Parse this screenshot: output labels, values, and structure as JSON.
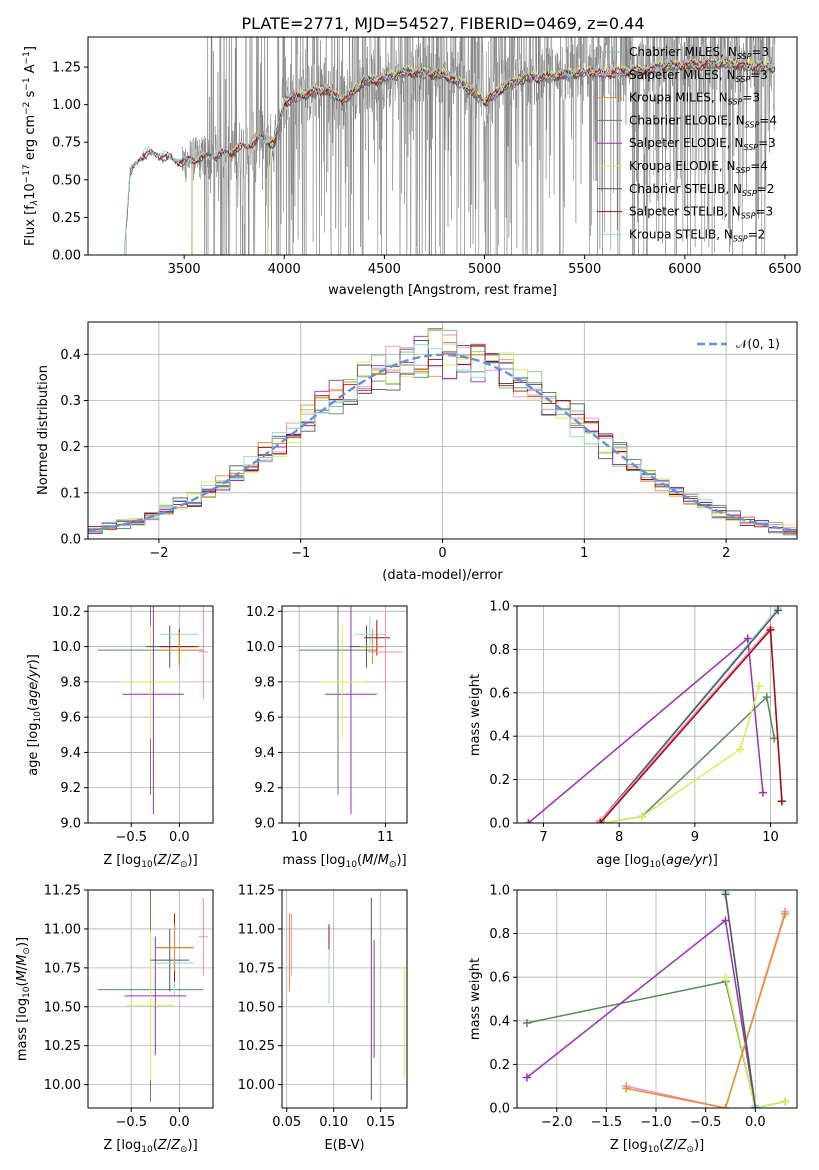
{
  "figure": {
    "title": "PLATE=2771, MJD=54527, FIBERID=0469, z=0.44"
  },
  "colors": {
    "Chabrier MILES": "#7fbf7f",
    "Salpeter MILES": "#f08cc8",
    "Kroupa MILES": "#e8902a",
    "Chabrier ELODIE": "#5a8a5a",
    "Salpeter ELODIE": "#9a32b4",
    "Kroupa ELODIE": "#d6ee5a",
    "Chabrier STELIB": "#555555",
    "Salpeter STELIB": "#a01010",
    "Kroupa STELIB": "#8cd8e8",
    "data_gray": "#808080",
    "normal_curve": "#6a8fd6",
    "grid": "#b0b0b0"
  },
  "legend_entries": [
    {
      "model": "Chabrier MILES",
      "label": "Chabrier MILES, N",
      "nssp": "=3"
    },
    {
      "model": "Salpeter MILES",
      "label": "Salpeter MILES, N",
      "nssp": "=3"
    },
    {
      "model": "Kroupa MILES",
      "label": "Kroupa MILES, N",
      "nssp": "=3"
    },
    {
      "model": "Chabrier ELODIE",
      "label": "Chabrier ELODIE, N",
      "nssp": "=4"
    },
    {
      "model": "Salpeter ELODIE",
      "label": "Salpeter ELODIE, N",
      "nssp": "=3"
    },
    {
      "model": "Kroupa ELODIE",
      "label": "Kroupa ELODIE, N",
      "nssp": "=4"
    },
    {
      "model": "Chabrier STELIB",
      "label": "Chabrier STELIB, N",
      "nssp": "=2"
    },
    {
      "model": "Salpeter STELIB",
      "label": "Salpeter STELIB, N",
      "nssp": "=3"
    },
    {
      "model": "Kroupa STELIB",
      "label": "Kroupa STELIB, N",
      "nssp": "=2"
    }
  ],
  "legend_ssp_subscript": "SSP",
  "chart_data": [
    {
      "id": "spectrum",
      "type": "line",
      "xlabel": "wavelength [Angstrom, rest frame]",
      "ylabel": "Flux [f",
      "ylabel_parts": [
        "Flux [f",
        "λ",
        "10",
        "−17",
        " erg cm",
        "−2",
        " s",
        "−1",
        " A",
        "−1",
        "]"
      ],
      "xlim": [
        3020,
        6560
      ],
      "ylim": [
        0,
        1.45
      ],
      "xticks": [
        3500,
        4000,
        4500,
        5000,
        5500,
        6000,
        6500
      ],
      "xtick_labels": [
        "3500",
        "4000",
        "4500",
        "5000",
        "5500",
        "6000",
        "6500"
      ],
      "yticks": [
        0,
        0.25,
        0.5,
        0.75,
        1.0,
        1.25
      ],
      "ytick_labels": [
        "0.00",
        "0.25",
        "0.50",
        "0.75",
        "1.00",
        "1.25"
      ],
      "grid": false,
      "legend_position": "top-right",
      "model_continuum": {
        "x": [
          3200,
          3230,
          3300,
          3400,
          3480,
          3560,
          3640,
          3720,
          3800,
          3880,
          3950,
          4000,
          4100,
          4200,
          4300,
          4400,
          4500,
          4600,
          4700,
          4800,
          4900,
          5000,
          5100,
          5200,
          5300,
          5400,
          5500,
          5600,
          5700,
          5800,
          5900,
          6000,
          6100,
          6200,
          6300,
          6400,
          6500
        ],
        "y": [
          0.0,
          0.55,
          0.68,
          0.66,
          0.62,
          0.64,
          0.66,
          0.68,
          0.72,
          0.78,
          0.74,
          1.02,
          1.07,
          1.1,
          1.03,
          1.16,
          1.17,
          1.22,
          1.21,
          1.2,
          1.13,
          1.02,
          1.12,
          1.18,
          1.18,
          1.2,
          1.22,
          1.21,
          1.22,
          1.23,
          1.26,
          1.26,
          1.27,
          1.28,
          1.26,
          1.25,
          1.25
        ]
      },
      "model_start_wavelength": {
        "Chabrier MILES": 3540,
        "Salpeter MILES": 3540,
        "Kroupa MILES": 3540,
        "Chabrier ELODIE": 3920,
        "Salpeter ELODIE": 3920,
        "Kroupa ELODIE": 3920,
        "Chabrier STELIB": 3210,
        "Salpeter STELIB": 3210,
        "Kroupa STELIB": 3210
      },
      "data_range": [
        3200,
        6450
      ]
    },
    {
      "id": "residuals",
      "type": "histogram",
      "xlabel": "(data-model)/error",
      "ylabel": "Normed distribution",
      "xlim": [
        -2.5,
        2.5
      ],
      "ylim": [
        0,
        0.47
      ],
      "xticks": [
        -2,
        -1,
        0,
        1,
        2
      ],
      "xtick_labels": [
        "−2",
        "−1",
        "0",
        "1",
        "2"
      ],
      "yticks": [
        0,
        0.1,
        0.2,
        0.3,
        0.4
      ],
      "ytick_labels": [
        "0.0",
        "0.1",
        "0.2",
        "0.3",
        "0.4"
      ],
      "grid": true,
      "legend_position": "top-right",
      "normal_label": "𝒩(0, 1)",
      "bin_width": 0.1
    },
    {
      "id": "age_vs_Z",
      "type": "scatter",
      "xlabel": "Z [log",
      "ylabel": "age  [log",
      "xlim": [
        -0.95,
        0.35
      ],
      "ylim": [
        9.0,
        10.23
      ],
      "xticks": [
        -0.5,
        0.0
      ],
      "xtick_labels": [
        "−0.5",
        "0.0"
      ],
      "yticks": [
        9.0,
        9.2,
        9.4,
        9.6,
        9.8,
        10.0,
        10.2
      ],
      "ytick_labels": [
        "9.0",
        "9.2",
        "9.4",
        "9.6",
        "9.8",
        "10.0",
        "10.2"
      ],
      "grid": true,
      "points": [
        {
          "model": "Chabrier ELODIE",
          "x": -0.3,
          "y": 9.98,
          "xerr": 0.55,
          "yerr": 0.82
        },
        {
          "model": "Salpeter ELODIE",
          "x": -0.27,
          "y": 9.73,
          "xerr": 0.32,
          "yerr": 0.68
        },
        {
          "model": "Kroupa ELODIE",
          "x": -0.3,
          "y": 9.8,
          "xerr": 0.3,
          "yerr": 0.32
        },
        {
          "model": "Chabrier STELIB",
          "x": -0.1,
          "y": 10.0,
          "xerr": 0.25,
          "yerr": 0.12
        },
        {
          "model": "Kroupa STELIB",
          "x": 0.0,
          "y": 10.07,
          "xerr": 0.2,
          "yerr": 0.1
        },
        {
          "model": "Salpeter STELIB",
          "x": 0.0,
          "y": 10.0,
          "xerr": 0.2,
          "yerr": 0.1
        },
        {
          "model": "Kroupa MILES",
          "x": 0.0,
          "y": 9.98,
          "xerr": 0.2,
          "yerr": 0.1
        },
        {
          "model": "Salpeter MILES",
          "x": 0.25,
          "y": 9.97,
          "xerr": 0.05,
          "yerr": 0.27
        }
      ]
    },
    {
      "id": "age_vs_mass",
      "type": "scatter",
      "xlabel": "mass [log",
      "ylabel": "",
      "xlim": [
        9.8,
        11.25
      ],
      "ylim": [
        9.0,
        10.23
      ],
      "xticks": [
        10,
        11
      ],
      "xtick_labels": [
        "10",
        "11"
      ],
      "yticks": [
        9.0,
        9.2,
        9.4,
        9.6,
        9.8,
        10.0,
        10.2
      ],
      "ytick_labels": [
        "9.0",
        "9.2",
        "9.4",
        "9.6",
        "9.8",
        "10.0",
        "10.2"
      ],
      "grid": true,
      "points": [
        {
          "model": "Chabrier ELODIE",
          "x": 10.45,
          "y": 9.98,
          "xerr": 0.45,
          "yerr": 0.82
        },
        {
          "model": "Salpeter ELODIE",
          "x": 10.6,
          "y": 9.73,
          "xerr": 0.3,
          "yerr": 0.68
        },
        {
          "model": "Kroupa ELODIE",
          "x": 10.5,
          "y": 9.8,
          "xerr": 0.25,
          "yerr": 0.32
        },
        {
          "model": "Chabrier STELIB",
          "x": 10.78,
          "y": 10.0,
          "xerr": 0.2,
          "yerr": 0.12
        },
        {
          "model": "Kroupa STELIB",
          "x": 10.82,
          "y": 10.07,
          "xerr": 0.18,
          "yerr": 0.1
        },
        {
          "model": "Salpeter STELIB",
          "x": 10.9,
          "y": 10.05,
          "xerr": 0.15,
          "yerr": 0.1
        },
        {
          "model": "Salpeter MILES",
          "x": 11.0,
          "y": 9.97,
          "xerr": 0.2,
          "yerr": 0.22
        },
        {
          "model": "Kroupa MILES",
          "x": 10.85,
          "y": 10.0,
          "xerr": 0.15,
          "yerr": 0.1
        }
      ]
    },
    {
      "id": "weight_vs_age",
      "type": "line",
      "xlabel": "age  [log",
      "ylabel": "mass weight",
      "xlim": [
        6.65,
        10.35
      ],
      "ylim": [
        0,
        1.0
      ],
      "xticks": [
        7,
        8,
        9,
        10
      ],
      "xtick_labels": [
        "7",
        "8",
        "9",
        "10"
      ],
      "yticks": [
        0,
        0.2,
        0.4,
        0.6,
        0.8,
        1.0
      ],
      "ytick_labels": [
        "0.0",
        "0.2",
        "0.4",
        "0.6",
        "0.8",
        "1.0"
      ],
      "grid": true,
      "series": [
        {
          "model": "Salpeter ELODIE",
          "x": [
            6.8,
            9.7,
            9.9
          ],
          "y": [
            0.0,
            0.85,
            0.14
          ]
        },
        {
          "model": "Chabrier ELODIE",
          "x": [
            7.8,
            8.3,
            9.95,
            10.05
          ],
          "y": [
            0.0,
            0.03,
            0.58,
            0.39
          ]
        },
        {
          "model": "Kroupa ELODIE",
          "x": [
            7.8,
            8.3,
            9.6,
            9.85
          ],
          "y": [
            0.0,
            0.03,
            0.34,
            0.63
          ]
        },
        {
          "model": "Kroupa STELIB",
          "x": [
            7.75,
            10.1
          ],
          "y": [
            0.01,
            0.99
          ]
        },
        {
          "model": "Chabrier STELIB",
          "x": [
            7.75,
            10.1
          ],
          "y": [
            0.01,
            0.98
          ]
        },
        {
          "model": "Kroupa MILES",
          "x": [
            7.75,
            10.0,
            10.15
          ],
          "y": [
            0.0,
            0.89,
            0.1
          ]
        },
        {
          "model": "Salpeter MILES",
          "x": [
            7.75,
            10.0,
            10.15
          ],
          "y": [
            0.01,
            0.9,
            0.1
          ]
        },
        {
          "model": "Salpeter STELIB",
          "x": [
            7.75,
            10.0,
            10.15
          ],
          "y": [
            0.0,
            0.89,
            0.1
          ]
        }
      ]
    },
    {
      "id": "mass_vs_Z",
      "type": "scatter",
      "xlabel": "Z [log",
      "ylabel": "mass [log",
      "xlim": [
        -0.95,
        0.35
      ],
      "ylim": [
        9.85,
        11.25
      ],
      "xticks": [
        -0.5,
        0.0
      ],
      "xtick_labels": [
        "−0.5",
        "0.0"
      ],
      "yticks": [
        10.0,
        10.25,
        10.5,
        10.75,
        11.0,
        11.25
      ],
      "ytick_labels": [
        "10.00",
        "10.25",
        "10.50",
        "10.75",
        "11.00",
        "11.25"
      ],
      "grid": true,
      "points": [
        {
          "model": "Chabrier ELODIE",
          "x": -0.3,
          "y": 10.61,
          "xerr": 0.55,
          "yerr": 0.72
        },
        {
          "model": "Salpeter ELODIE",
          "x": -0.25,
          "y": 10.57,
          "xerr": 0.32,
          "yerr": 0.38
        },
        {
          "model": "Kroupa ELODIE",
          "x": -0.3,
          "y": 10.51,
          "xerr": 0.25,
          "yerr": 0.48
        },
        {
          "model": "Chabrier STELIB",
          "x": -0.1,
          "y": 10.8,
          "xerr": 0.2,
          "yerr": 0.2
        },
        {
          "model": "Kroupa STELIB",
          "x": -0.05,
          "y": 10.78,
          "xerr": 0.2,
          "yerr": 0.2
        },
        {
          "model": "Salpeter STELIB",
          "x": -0.05,
          "y": 10.88,
          "xerr": 0.2,
          "yerr": 0.22
        },
        {
          "model": "Kroupa MILES",
          "x": -0.05,
          "y": 10.88,
          "xerr": 0.2,
          "yerr": 0.15
        },
        {
          "model": "Salpeter MILES",
          "x": 0.25,
          "y": 10.95,
          "xerr": 0.05,
          "yerr": 0.25
        }
      ]
    },
    {
      "id": "mass_vs_EBV",
      "type": "scatter",
      "xlabel": "E(B-V)",
      "ylabel": "",
      "xlim": [
        0.045,
        0.178
      ],
      "ylim": [
        9.85,
        11.25
      ],
      "xticks": [
        0.05,
        0.1,
        0.15
      ],
      "xtick_labels": [
        "0.05",
        "0.10",
        "0.15"
      ],
      "yticks": [
        10.0,
        10.25,
        10.5,
        10.75,
        11.0,
        11.25
      ],
      "ytick_labels": [
        "10.00",
        "10.25",
        "10.50",
        "10.75",
        "11.00",
        "11.25"
      ],
      "grid": true,
      "points": [
        {
          "model": "Salpeter MILES",
          "x": 0.055,
          "y": 10.9,
          "xerr": 0.0,
          "yerr": 0.2
        },
        {
          "model": "Kroupa MILES",
          "x": 0.053,
          "y": 10.85,
          "xerr": 0.0,
          "yerr": 0.25
        },
        {
          "model": "Chabrier ELODIE",
          "x": 0.095,
          "y": 10.8,
          "xerr": 0.0,
          "yerr": 0.2
        },
        {
          "model": "Kroupa STELIB",
          "x": 0.095,
          "y": 10.77,
          "xerr": 0.0,
          "yerr": 0.25
        },
        {
          "model": "Salpeter STELIB",
          "x": 0.095,
          "y": 10.95,
          "xerr": 0.0,
          "yerr": 0.08
        },
        {
          "model": "Chabrier STELIB",
          "x": 0.14,
          "y": 10.55,
          "xerr": 0.0,
          "yerr": 0.65
        },
        {
          "model": "Salpeter ELODIE",
          "x": 0.143,
          "y": 10.55,
          "xerr": 0.0,
          "yerr": 0.38
        },
        {
          "model": "Kroupa ELODIE",
          "x": 0.175,
          "y": 10.4,
          "xerr": 0.0,
          "yerr": 0.36
        }
      ]
    },
    {
      "id": "weight_vs_Z",
      "type": "line",
      "xlabel": "Z [log",
      "ylabel": "mass weight",
      "xlim": [
        -2.4,
        0.42
      ],
      "ylim": [
        0,
        1.0
      ],
      "xticks": [
        -2.0,
        -1.5,
        -1.0,
        -0.5,
        0.0
      ],
      "xtick_labels": [
        "−2.0",
        "−1.5",
        "−1.0",
        "−0.5",
        "0.0"
      ],
      "yticks": [
        0,
        0.2,
        0.4,
        0.6,
        0.8,
        1.0
      ],
      "ytick_labels": [
        "0.0",
        "0.2",
        "0.4",
        "0.6",
        "0.8",
        "1.0"
      ],
      "grid": true,
      "series": [
        {
          "model": "Chabrier ELODIE",
          "x": [
            -2.3,
            -0.3,
            0.0,
            0.3
          ],
          "y": [
            0.39,
            0.58,
            0.0,
            0.03
          ]
        },
        {
          "model": "Salpeter ELODIE",
          "x": [
            -2.3,
            -0.3,
            0.0
          ],
          "y": [
            0.14,
            0.86,
            0.0
          ]
        },
        {
          "model": "Kroupa ELODIE",
          "x": [
            -0.3,
            0.0,
            0.3
          ],
          "y": [
            0.6,
            0.0,
            0.03
          ]
        },
        {
          "model": "Salpeter MILES",
          "x": [
            -1.3,
            -0.3,
            0.3
          ],
          "y": [
            0.1,
            0.0,
            0.9
          ]
        },
        {
          "model": "Kroupa MILES",
          "x": [
            -1.3,
            -0.3,
            0.3
          ],
          "y": [
            0.09,
            0.0,
            0.89
          ]
        },
        {
          "model": "Kroupa STELIB",
          "x": [
            -0.3,
            0.0
          ],
          "y": [
            0.99,
            0.01
          ]
        },
        {
          "model": "Chabrier STELIB",
          "x": [
            -0.3,
            0.0
          ],
          "y": [
            0.98,
            0.0
          ]
        }
      ]
    }
  ]
}
